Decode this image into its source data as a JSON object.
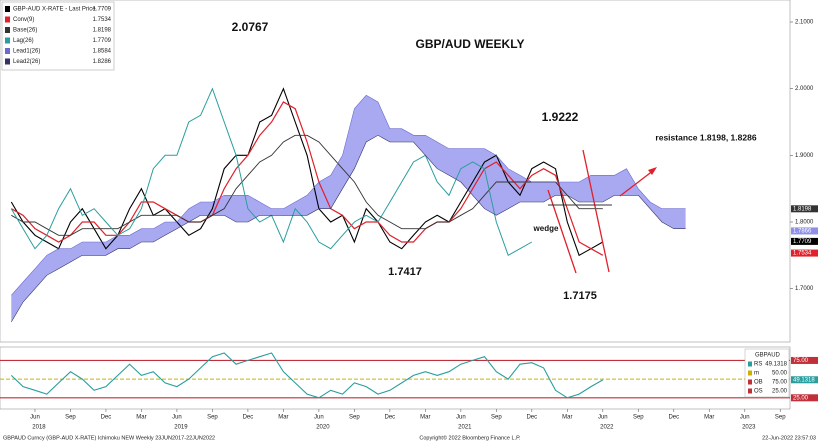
{
  "chart_data": [
    {
      "type": "line",
      "title": "GBP/AUD WEEKLY",
      "annotations": [
        "2.0767",
        "1.9222",
        "1.7417",
        "1.7175",
        "resistance 1.8198, 1.8286",
        "wedge"
      ],
      "categories": [
        null,
        null,
        "Jun",
        null,
        null,
        "Sep",
        null,
        null,
        "Dec",
        null,
        null,
        "Mar",
        null,
        null,
        "Jun",
        null,
        null,
        "Sep",
        null,
        null,
        "Dec",
        null,
        null,
        "Mar",
        null,
        null,
        "Jun",
        null,
        null,
        "Sep",
        null,
        null,
        "Dec",
        null,
        null,
        "Mar",
        null,
        null,
        "Jun",
        null,
        null,
        "Sep",
        null,
        null,
        "Dec",
        null,
        null,
        "Mar",
        null,
        null,
        "Jun",
        null,
        null,
        "Sep",
        null,
        null,
        "Dec",
        null,
        null,
        "Mar",
        null,
        null,
        "Jun",
        null,
        null,
        "Sep"
      ],
      "category_groups": [
        null,
        null,
        "2018",
        null,
        null,
        null,
        null,
        null,
        null,
        null,
        null,
        null,
        null,
        null,
        "2019",
        null,
        null,
        null,
        null,
        null,
        null,
        null,
        null,
        null,
        null,
        null,
        "2020",
        null,
        null,
        null,
        null,
        null,
        null,
        null,
        null,
        null,
        null,
        null,
        "2021",
        null,
        null,
        null,
        null,
        null,
        null,
        null,
        null,
        null,
        null,
        null,
        "2022",
        null,
        null,
        null,
        null,
        null,
        null,
        null,
        null,
        null,
        null,
        null,
        "2023",
        null,
        null,
        null
      ],
      "ylim": [
        1.62,
        2.133
      ],
      "yticks": [
        {
          "value": 2.1,
          "label": "2.1000"
        },
        {
          "value": 2.0,
          "label": "2.0000"
        },
        {
          "value": 1.9,
          "label": "1.9000"
        },
        {
          "value": 1.8,
          "label": "1.8000"
        },
        {
          "value": 1.7,
          "label": "1.7000"
        }
      ],
      "axis_tags": [
        {
          "value": 1.8198,
          "color": "#333333"
        },
        {
          "value": 1.7866,
          "color": "#8f8fe8"
        },
        {
          "value": 1.7709,
          "color": "#000000"
        },
        {
          "value": 1.7534,
          "color": "#e0202a"
        }
      ],
      "cloud_color": "#9a9af0",
      "series": [
        {
          "name": "GBP-AUD X-RATE - Last Price",
          "last": 1.7709,
          "color": "#000000",
          "values": [
            1.83,
            1.8,
            1.78,
            1.77,
            1.76,
            1.8,
            1.82,
            1.79,
            1.76,
            1.78,
            1.82,
            1.85,
            1.81,
            1.82,
            1.8,
            1.78,
            1.79,
            1.82,
            1.88,
            1.9,
            1.9,
            1.95,
            1.96,
            2.0,
            1.95,
            1.9,
            1.82,
            1.8,
            1.81,
            1.77,
            1.82,
            1.8,
            1.77,
            1.76,
            1.78,
            1.8,
            1.81,
            1.8,
            1.83,
            1.86,
            1.89,
            1.9,
            1.86,
            1.84,
            1.88,
            1.89,
            1.88,
            1.8,
            1.75,
            1.76,
            1.77,
            null,
            null,
            null,
            null,
            null,
            null,
            null,
            null,
            null,
            null,
            null,
            null,
            null,
            null,
            null
          ]
        },
        {
          "name": "Conv(9)",
          "last": 1.7534,
          "color": "#e0202a",
          "values": [
            1.82,
            1.81,
            1.79,
            1.78,
            1.77,
            1.78,
            1.8,
            1.8,
            1.78,
            1.78,
            1.8,
            1.83,
            1.83,
            1.82,
            1.81,
            1.8,
            1.8,
            1.81,
            1.85,
            1.88,
            1.9,
            1.93,
            1.95,
            1.98,
            1.97,
            1.92,
            1.86,
            1.82,
            1.81,
            1.79,
            1.8,
            1.8,
            1.78,
            1.77,
            1.77,
            1.79,
            1.8,
            1.8,
            1.82,
            1.85,
            1.88,
            1.89,
            1.87,
            1.85,
            1.87,
            1.88,
            1.87,
            1.82,
            1.77,
            1.76,
            1.75,
            null,
            null,
            null,
            null,
            null,
            null,
            null,
            null,
            null,
            null,
            null,
            null,
            null,
            null,
            null
          ]
        },
        {
          "name": "Base(26)",
          "last": 1.8198,
          "color": "#333333",
          "values": [
            1.81,
            1.8,
            1.8,
            1.79,
            1.78,
            1.78,
            1.79,
            1.79,
            1.79,
            1.79,
            1.8,
            1.81,
            1.81,
            1.81,
            1.81,
            1.8,
            1.8,
            1.81,
            1.82,
            1.85,
            1.87,
            1.89,
            1.9,
            1.92,
            1.93,
            1.93,
            1.92,
            1.9,
            1.88,
            1.86,
            1.83,
            1.81,
            1.8,
            1.79,
            1.79,
            1.79,
            1.8,
            1.8,
            1.81,
            1.82,
            1.84,
            1.86,
            1.86,
            1.86,
            1.86,
            1.86,
            1.86,
            1.84,
            1.82,
            1.82,
            1.82,
            null,
            null,
            null,
            null,
            null,
            null,
            null,
            null,
            null,
            null,
            null,
            null,
            null,
            null,
            null
          ]
        },
        {
          "name": "Lag(26)",
          "last": 1.7709,
          "color": "#2a9d9d",
          "values": [
            1.82,
            1.79,
            1.76,
            1.78,
            1.82,
            1.85,
            1.81,
            1.82,
            1.8,
            1.78,
            1.79,
            1.82,
            1.88,
            1.9,
            1.9,
            1.95,
            1.96,
            2.0,
            1.95,
            1.9,
            1.82,
            1.8,
            1.81,
            1.77,
            1.82,
            1.8,
            1.77,
            1.76,
            1.78,
            1.8,
            1.81,
            1.8,
            1.83,
            1.86,
            1.89,
            1.9,
            1.86,
            1.84,
            1.88,
            1.89,
            1.88,
            1.8,
            1.75,
            1.76,
            1.77,
            null,
            null,
            null,
            null,
            null,
            null,
            null,
            null,
            null,
            null,
            null,
            null,
            null,
            null,
            null,
            null,
            null,
            null,
            null,
            null,
            null
          ]
        },
        {
          "name": "Lead1(26)",
          "last": 1.8584,
          "color": "#6a6ad0",
          "cloud": true,
          "values": [
            1.69,
            1.71,
            1.73,
            1.75,
            1.76,
            1.76,
            1.77,
            1.77,
            1.77,
            1.78,
            1.78,
            1.79,
            1.79,
            1.8,
            1.8,
            1.82,
            1.83,
            1.83,
            1.84,
            1.84,
            1.84,
            1.83,
            1.82,
            1.82,
            1.83,
            1.84,
            1.86,
            1.87,
            1.9,
            1.97,
            1.99,
            1.98,
            1.94,
            1.94,
            1.93,
            1.93,
            1.92,
            1.91,
            1.91,
            1.91,
            1.91,
            1.9,
            1.88,
            1.87,
            1.86,
            1.86,
            1.86,
            1.86,
            1.86,
            1.87,
            1.87,
            1.87,
            1.88,
            1.85,
            1.83,
            1.82,
            1.82,
            1.82,
            null,
            null,
            null,
            null,
            null,
            null,
            null,
            null
          ]
        },
        {
          "name": "Lead2(26)",
          "last": 1.8286,
          "color": "#333366",
          "cloud": true,
          "values": [
            1.65,
            1.68,
            1.7,
            1.72,
            1.73,
            1.74,
            1.75,
            1.75,
            1.75,
            1.76,
            1.76,
            1.77,
            1.77,
            1.78,
            1.79,
            1.8,
            1.81,
            1.81,
            1.81,
            1.8,
            1.8,
            1.81,
            1.81,
            1.81,
            1.81,
            1.81,
            1.82,
            1.82,
            1.85,
            1.88,
            1.92,
            1.93,
            1.92,
            1.92,
            1.92,
            1.9,
            1.88,
            1.87,
            1.86,
            1.84,
            1.82,
            1.81,
            1.82,
            1.83,
            1.83,
            1.83,
            1.84,
            1.84,
            1.83,
            1.83,
            1.83,
            1.84,
            1.84,
            1.84,
            1.82,
            1.8,
            1.79,
            1.79,
            null,
            null,
            null,
            null,
            null,
            null,
            null,
            null
          ]
        }
      ]
    },
    {
      "type": "line",
      "ylim": [
        10,
        93
      ],
      "legend_title": "GBPAUD",
      "legend": [
        {
          "name": "RS",
          "value": 49.1318,
          "color": "#2a9d9d"
        },
        {
          "name": "m",
          "value": 50,
          "value_label": "50.00",
          "color": "#c8b400"
        },
        {
          "name": "OB",
          "value": 75,
          "value_label": "75.00",
          "color": "#c0303a"
        },
        {
          "name": "OS",
          "value": 25,
          "value_label": "25.00",
          "color": "#c0303a"
        }
      ],
      "series": [
        {
          "name": "RS",
          "color": "#2a9d9d",
          "values": [
            55,
            40,
            35,
            30,
            45,
            60,
            50,
            35,
            40,
            55,
            70,
            55,
            60,
            45,
            40,
            50,
            65,
            80,
            85,
            70,
            75,
            80,
            85,
            60,
            45,
            30,
            25,
            35,
            30,
            45,
            40,
            30,
            35,
            45,
            55,
            60,
            55,
            60,
            70,
            75,
            80,
            60,
            50,
            70,
            72,
            65,
            35,
            25,
            30,
            40,
            49,
            null,
            null,
            null,
            null,
            null,
            null,
            null,
            null,
            null,
            null,
            null,
            null,
            null,
            null,
            null
          ]
        }
      ]
    }
  ],
  "footer": {
    "left": "GBPAUD Curncy (GBP-AUD X-RATE) Ichimoku NEW  Weekly 23JUN2017-22JUN2022",
    "center": "Copyright© 2022 Bloomberg Finance L.P.",
    "right": "22-Jun-2022 23:57:03"
  }
}
